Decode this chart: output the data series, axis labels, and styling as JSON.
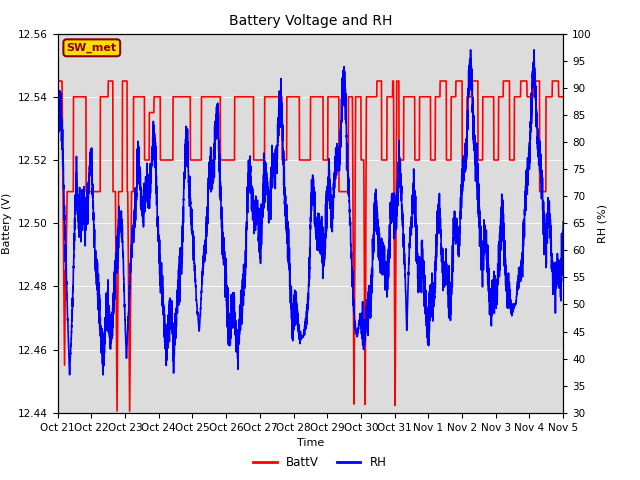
{
  "title": "Battery Voltage and RH",
  "xlabel": "Time",
  "ylabel_left": "Battery (V)",
  "ylabel_right": "RH (%)",
  "ylim_left": [
    12.44,
    12.56
  ],
  "ylim_right": [
    30,
    100
  ],
  "yticks_left": [
    12.44,
    12.46,
    12.48,
    12.5,
    12.52,
    12.54,
    12.56
  ],
  "yticks_right": [
    30,
    35,
    40,
    45,
    50,
    55,
    60,
    65,
    70,
    75,
    80,
    85,
    90,
    95,
    100
  ],
  "xtick_labels": [
    "Oct 21",
    "Oct 22",
    "Oct 23",
    "Oct 24",
    "Oct 25",
    "Oct 26",
    "Oct 27",
    "Oct 28",
    "Oct 29",
    "Oct 30",
    "Oct 31",
    "Nov 1",
    "Nov 2",
    "Nov 3",
    "Nov 4",
    "Nov 5"
  ],
  "annotation_text": "SW_met",
  "annotation_color": "#8B0000",
  "annotation_bg": "#FFDD00",
  "legend_labels": [
    "BattV",
    "RH"
  ],
  "line_color_batt": "red",
  "line_color_rh": "blue",
  "bg_color": "#DCDCDC",
  "fig_bg": "#FFFFFF",
  "line_width": 1.2,
  "num_points": 4800,
  "title_fontsize": 10,
  "label_fontsize": 8,
  "tick_fontsize": 7.5,
  "annot_fontsize": 8
}
